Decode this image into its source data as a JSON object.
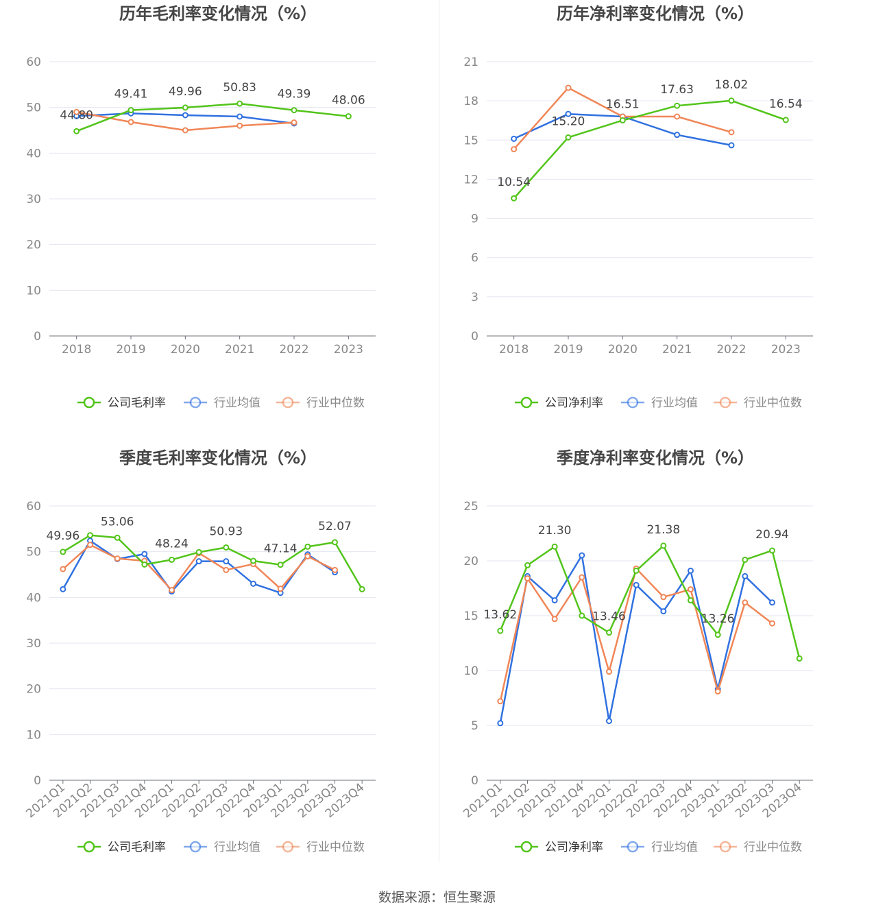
{
  "source": "数据来源：恒生聚源",
  "colors": {
    "company": "#52c41a",
    "average": "#3071e0",
    "median": "#f08657"
  },
  "charts": [
    {
      "id": "annual-gross",
      "type": "line",
      "title": "历年毛利率变化情况（%）",
      "categories": [
        "2018",
        "2019",
        "2020",
        "2021",
        "2022",
        "2023"
      ],
      "ylim": [
        0,
        60
      ],
      "yticks": [
        0,
        10,
        20,
        30,
        40,
        50,
        60
      ],
      "rotate_labels": false,
      "series": [
        {
          "name": "公司毛利率",
          "key": "company",
          "values": [
            44.8,
            49.41,
            49.96,
            50.83,
            49.39,
            48.06
          ],
          "labels": true
        },
        {
          "name": "行业均值",
          "key": "average",
          "values": [
            48.1,
            48.7,
            48.3,
            48.0,
            46.5,
            null
          ]
        },
        {
          "name": "行业中位数",
          "key": "median",
          "values": [
            49.0,
            46.8,
            45.0,
            46.0,
            46.7,
            null
          ]
        }
      ]
    },
    {
      "id": "annual-net",
      "type": "line",
      "title": "历年净利率变化情况（%）",
      "categories": [
        "2018",
        "2019",
        "2020",
        "2021",
        "2022",
        "2023"
      ],
      "ylim": [
        0,
        21
      ],
      "yticks": [
        0,
        3,
        6,
        9,
        12,
        15,
        18,
        21
      ],
      "rotate_labels": false,
      "series": [
        {
          "name": "公司净利率",
          "key": "company",
          "values": [
            10.54,
            15.2,
            16.51,
            17.63,
            18.02,
            16.54
          ],
          "labels": true
        },
        {
          "name": "行业均值",
          "key": "average",
          "values": [
            15.1,
            17.0,
            16.8,
            15.4,
            14.6,
            null
          ]
        },
        {
          "name": "行业中位数",
          "key": "median",
          "values": [
            14.3,
            19.0,
            16.8,
            16.8,
            15.6,
            null
          ]
        }
      ]
    },
    {
      "id": "quarterly-gross",
      "type": "line",
      "title": "季度毛利率变化情况（%）",
      "categories": [
        "2021Q1",
        "2021Q2",
        "2021Q3",
        "2021Q4",
        "2022Q1",
        "2022Q2",
        "2022Q3",
        "2022Q4",
        "2023Q1",
        "2023Q2",
        "2023Q3",
        "2023Q4"
      ],
      "ylim": [
        0,
        60
      ],
      "yticks": [
        0,
        10,
        20,
        30,
        40,
        50,
        60
      ],
      "rotate_labels": true,
      "series": [
        {
          "name": "公司毛利率",
          "key": "company",
          "values": [
            49.96,
            53.6,
            53.06,
            47.2,
            48.24,
            49.9,
            50.93,
            48.0,
            47.14,
            51.1,
            52.07,
            41.8
          ],
          "label_indices": [
            0,
            2,
            4,
            6,
            8,
            10
          ],
          "labels": true
        },
        {
          "name": "行业均值",
          "key": "average",
          "values": [
            41.8,
            52.4,
            48.4,
            49.5,
            41.3,
            47.9,
            47.9,
            43.0,
            41.0,
            49.4,
            45.5,
            null
          ]
        },
        {
          "name": "行业中位数",
          "key": "median",
          "values": [
            46.2,
            51.5,
            48.5,
            48.0,
            41.6,
            49.7,
            46.0,
            47.3,
            41.9,
            49.0,
            46.0,
            null
          ]
        }
      ]
    },
    {
      "id": "quarterly-net",
      "type": "line",
      "title": "季度净利率变化情况（%）",
      "categories": [
        "2021Q1",
        "2021Q2",
        "2021Q3",
        "2021Q4",
        "2022Q1",
        "2022Q2",
        "2022Q3",
        "2022Q4",
        "2023Q1",
        "2023Q2",
        "2023Q3",
        "2023Q4"
      ],
      "ylim": [
        0,
        25
      ],
      "yticks": [
        0,
        5,
        10,
        15,
        20,
        25
      ],
      "rotate_labels": true,
      "series": [
        {
          "name": "公司净利率",
          "key": "company",
          "values": [
            13.62,
            19.6,
            21.3,
            15.0,
            13.46,
            19.1,
            21.38,
            16.4,
            13.26,
            20.1,
            20.94,
            11.1
          ],
          "label_indices": [
            0,
            2,
            4,
            6,
            8,
            10
          ],
          "labels": true
        },
        {
          "name": "行业均值",
          "key": "average",
          "values": [
            5.2,
            18.6,
            16.4,
            20.5,
            5.4,
            17.8,
            15.4,
            19.1,
            8.3,
            18.6,
            16.2,
            null
          ]
        },
        {
          "name": "行业中位数",
          "key": "median",
          "values": [
            7.2,
            18.4,
            14.7,
            18.5,
            9.9,
            19.3,
            16.7,
            17.4,
            8.1,
            16.2,
            14.3,
            null
          ]
        }
      ]
    }
  ]
}
